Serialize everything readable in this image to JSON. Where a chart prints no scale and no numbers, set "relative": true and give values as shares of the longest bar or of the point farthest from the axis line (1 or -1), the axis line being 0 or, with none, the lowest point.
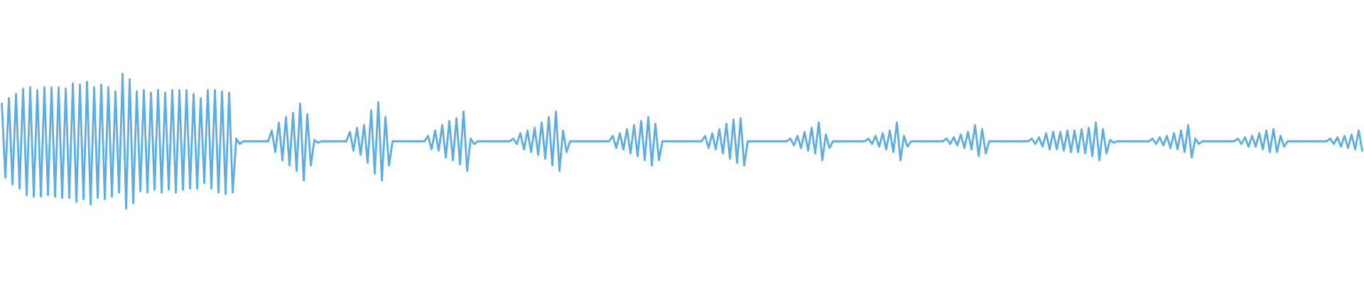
{
  "chart_data": {
    "type": "line",
    "relative": true,
    "categories": [
      null,
      null,
      null,
      null,
      null,
      null,
      null,
      null,
      null,
      null,
      null,
      null,
      null,
      null,
      null,
      null,
      null,
      null,
      null,
      null,
      null,
      null,
      null,
      null,
      null,
      null,
      null,
      null,
      null,
      null,
      null,
      null,
      null,
      null,
      null,
      null,
      null,
      null,
      null,
      null,
      null,
      null,
      null,
      null,
      null,
      null,
      null,
      null,
      null,
      null,
      null,
      null,
      null,
      null,
      null,
      null,
      null,
      null,
      null,
      null,
      null,
      null,
      null,
      null,
      null,
      null,
      null,
      null,
      null,
      null,
      null,
      null,
      null,
      null,
      null,
      null,
      null,
      null,
      null,
      null,
      null,
      null,
      null,
      null,
      null,
      null,
      null,
      null,
      null,
      null,
      null,
      null,
      null,
      null,
      null,
      null,
      null,
      null,
      null,
      null,
      null,
      null,
      null,
      null,
      null,
      null,
      null,
      null,
      null,
      null,
      null,
      null,
      null,
      null,
      null,
      null,
      null,
      null,
      null,
      null,
      null,
      null,
      null,
      null,
      null,
      null,
      null,
      null,
      null,
      null,
      null,
      null,
      null,
      null,
      null,
      null,
      null,
      null,
      null,
      null,
      null,
      null,
      null,
      null,
      null,
      null,
      null,
      null,
      null,
      null,
      null,
      null,
      null,
      null,
      null,
      null,
      null,
      null,
      null,
      null,
      null,
      null,
      null,
      null,
      null,
      null,
      null,
      null,
      null,
      null,
      null,
      null,
      null,
      null,
      null,
      null,
      null,
      null,
      null,
      null,
      null,
      null,
      null,
      null,
      null,
      null,
      null,
      null,
      null,
      null,
      null,
      null,
      null,
      null,
      null,
      null,
      null,
      null,
      null,
      null,
      null,
      null,
      null,
      null,
      null,
      null,
      null,
      null,
      null,
      null,
      null,
      null,
      null,
      null,
      null,
      null,
      null,
      null,
      null,
      null,
      null,
      null,
      null,
      null,
      null,
      null,
      null,
      null,
      null,
      null,
      null,
      null,
      null,
      null,
      null,
      null,
      null,
      null,
      null,
      null,
      null,
      null,
      null,
      null,
      null,
      null,
      null,
      null,
      null,
      null,
      null,
      null,
      null,
      null,
      null,
      null,
      null,
      null,
      null,
      null,
      null,
      null,
      null,
      null,
      null,
      null,
      null,
      null,
      null,
      null,
      null,
      null,
      null,
      null,
      null,
      null,
      null,
      null,
      null,
      null,
      null,
      null,
      null,
      null,
      null,
      null,
      null,
      null,
      null,
      null,
      null,
      null,
      null,
      null,
      null,
      null,
      null,
      null,
      null,
      null,
      null,
      null,
      null,
      null,
      null,
      null,
      null,
      null,
      null,
      null,
      null,
      null,
      null,
      null,
      null,
      null,
      null,
      null,
      null,
      null,
      null,
      null,
      null,
      null,
      null,
      null,
      null,
      null,
      null,
      null,
      null,
      null,
      null,
      null,
      null,
      null,
      null,
      null,
      null,
      null,
      null,
      null,
      null,
      null,
      null,
      null,
      null,
      null,
      null,
      null,
      null,
      null,
      null,
      null,
      null,
      null,
      null,
      null,
      null,
      null,
      null,
      null,
      null,
      null,
      null,
      null,
      null,
      null,
      null,
      null,
      null,
      null,
      null,
      null,
      null,
      null,
      null,
      null,
      null,
      null,
      null,
      null,
      null,
      null
    ],
    "series": [
      {
        "color": "#5dade2",
        "values": [
          0.78,
          0.23,
          0.82,
          0.18,
          0.85,
          0.15,
          0.89,
          0.1,
          0.9,
          0.09,
          0.88,
          0.09,
          0.9,
          0.1,
          0.9,
          0.09,
          0.9,
          0.08,
          0.89,
          0.08,
          0.93,
          0.05,
          0.92,
          0.07,
          0.94,
          0.03,
          0.9,
          0.08,
          0.92,
          0.07,
          0.9,
          0.09,
          0.87,
          0.12,
          1,
          0,
          0.96,
          0.04,
          0.87,
          0.13,
          0.88,
          0.12,
          0.86,
          0.14,
          0.88,
          0.12,
          0.86,
          0.14,
          0.88,
          0.12,
          0.88,
          0.14,
          0.88,
          0.15,
          0.85,
          0.15,
          0.82,
          0.19,
          0.88,
          0.15,
          0.88,
          0.12,
          0.87,
          0.11,
          0.86,
          0.12,
          0.52,
          0.48,
          0.5,
          0.5,
          0.5,
          0.5,
          0.5,
          0.5,
          0.5,
          0.5,
          0.58,
          0.42,
          0.64,
          0.36,
          0.68,
          0.32,
          0.71,
          0.28,
          0.78,
          0.21,
          0.7,
          0.32,
          0.51,
          0.49,
          0.5,
          0.5,
          0.5,
          0.5,
          0.5,
          0.5,
          0.5,
          0.5,
          0.57,
          0.43,
          0.6,
          0.4,
          0.62,
          0.34,
          0.73,
          0.26,
          0.79,
          0.21,
          0.68,
          0.32,
          0.5,
          0.5,
          0.5,
          0.5,
          0.5,
          0.5,
          0.5,
          0.5,
          0.5,
          0.5,
          0.54,
          0.44,
          0.58,
          0.43,
          0.62,
          0.38,
          0.65,
          0.36,
          0.67,
          0.33,
          0.72,
          0.28,
          0.52,
          0.48,
          0.5,
          0.5,
          0.5,
          0.5,
          0.5,
          0.5,
          0.5,
          0.5,
          0.5,
          0.5,
          0.52,
          0.48,
          0.56,
          0.44,
          0.58,
          0.42,
          0.6,
          0.4,
          0.64,
          0.37,
          0.68,
          0.32,
          0.72,
          0.28,
          0.58,
          0.42,
          0.5,
          0.5,
          0.5,
          0.5,
          0.5,
          0.5,
          0.5,
          0.5,
          0.5,
          0.5,
          0.5,
          0.5,
          0.54,
          0.45,
          0.56,
          0.44,
          0.59,
          0.41,
          0.62,
          0.39,
          0.65,
          0.36,
          0.68,
          0.32,
          0.63,
          0.36,
          0.5,
          0.5,
          0.5,
          0.5,
          0.5,
          0.5,
          0.5,
          0.5,
          0.5,
          0.5,
          0.5,
          0.5,
          0.54,
          0.45,
          0.56,
          0.44,
          0.59,
          0.41,
          0.63,
          0.37,
          0.66,
          0.34,
          0.67,
          0.32,
          0.5,
          0.5,
          0.5,
          0.5,
          0.5,
          0.5,
          0.5,
          0.5,
          0.5,
          0.5,
          0.5,
          0.5,
          0.52,
          0.47,
          0.54,
          0.45,
          0.57,
          0.43,
          0.6,
          0.41,
          0.64,
          0.36,
          0.55,
          0.45,
          0.5,
          0.5,
          0.5,
          0.5,
          0.5,
          0.5,
          0.5,
          0.5,
          0.5,
          0.5,
          0.52,
          0.48,
          0.54,
          0.46,
          0.56,
          0.44,
          0.58,
          0.42,
          0.64,
          0.36,
          0.54,
          0.46,
          0.5,
          0.5,
          0.5,
          0.5,
          0.5,
          0.5,
          0.5,
          0.5,
          0.5,
          0.5,
          0.52,
          0.48,
          0.53,
          0.47,
          0.55,
          0.45,
          0.57,
          0.44,
          0.62,
          0.39,
          0.59,
          0.41,
          0.5,
          0.5,
          0.5,
          0.5,
          0.5,
          0.5,
          0.5,
          0.5,
          0.5,
          0.5,
          0.5,
          0.5,
          0.52,
          0.48,
          0.53,
          0.46,
          0.56,
          0.44,
          0.57,
          0.44,
          0.57,
          0.43,
          0.58,
          0.42,
          0.58,
          0.42,
          0.59,
          0.41,
          0.6,
          0.39,
          0.64,
          0.36,
          0.59,
          0.41,
          0.51,
          0.49,
          0.5,
          0.5,
          0.5,
          0.5,
          0.5,
          0.5,
          0.5,
          0.5,
          0.5,
          0.5,
          0.52,
          0.48,
          0.53,
          0.47,
          0.54,
          0.45,
          0.56,
          0.44,
          0.58,
          0.42,
          0.62,
          0.38,
          0.52,
          0.48,
          0.5,
          0.5,
          0.5,
          0.5,
          0.5,
          0.5,
          0.5,
          0.5,
          0.5,
          0.5,
          0.52,
          0.48,
          0.53,
          0.46,
          0.54,
          0.46,
          0.56,
          0.44,
          0.58,
          0.42,
          0.59,
          0.42,
          0.54,
          0.46,
          0.5,
          0.5,
          0.5,
          0.5,
          0.5,
          0.5,
          0.5,
          0.5,
          0.5,
          0.5,
          0.5,
          0.5,
          0.52,
          0.48,
          0.53,
          0.46,
          0.54,
          0.45,
          0.55,
          0.44,
          0.58,
          0.43
        ]
      }
    ]
  }
}
